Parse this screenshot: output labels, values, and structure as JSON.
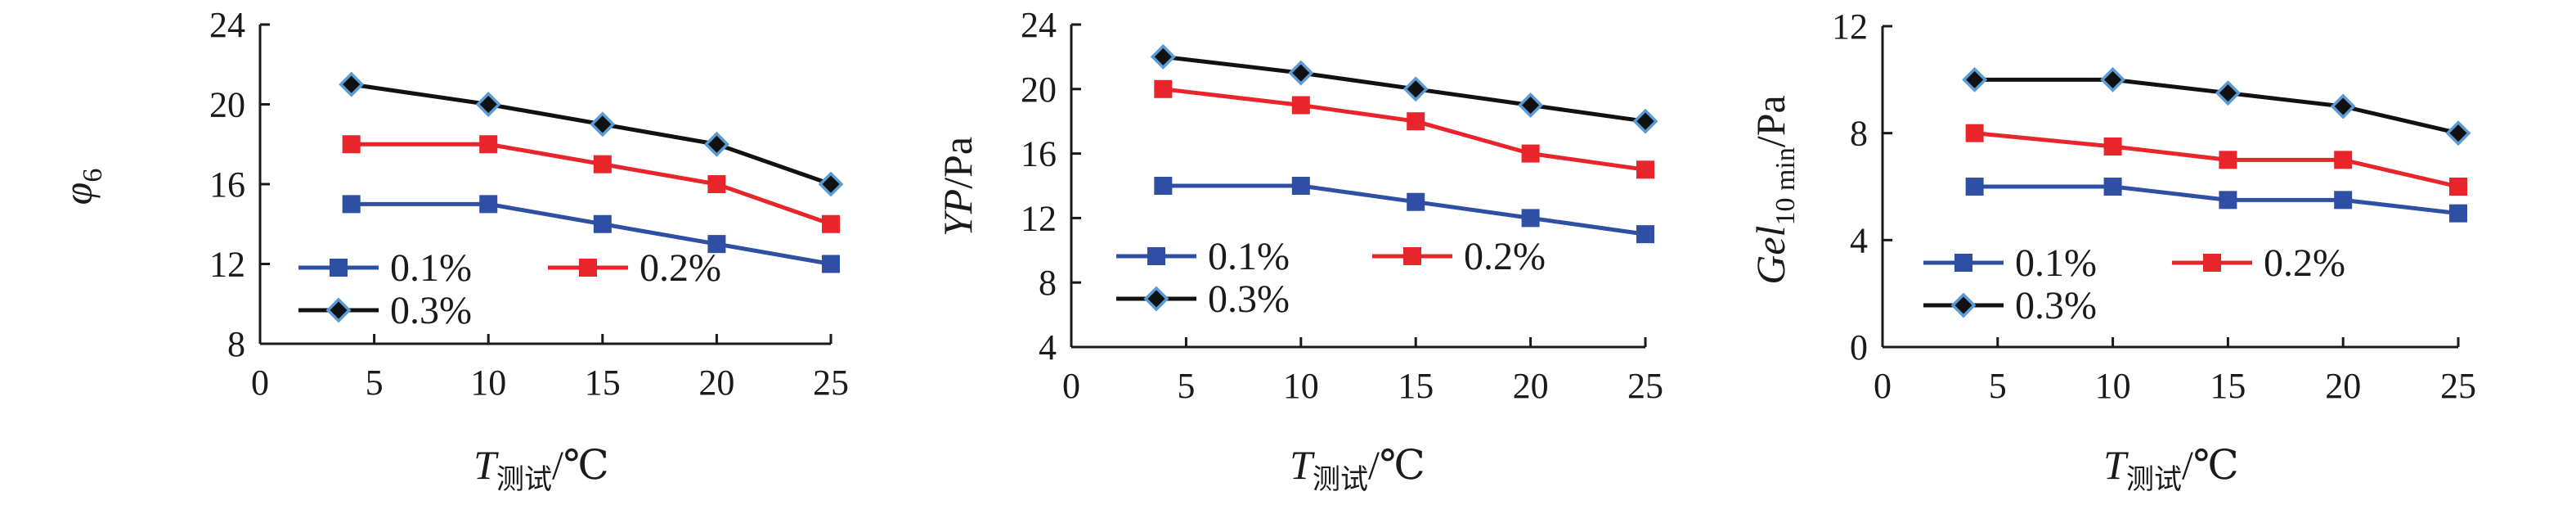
{
  "colors": {
    "series_0_1": "#2e4fa3",
    "series_0_2": "#e8252b",
    "series_0_3": "#111111",
    "marker_0_3_fill": "#111111",
    "marker_0_3_edge": "#5a9bd5",
    "axis": "#1a1a1a"
  },
  "markers": {
    "0.1%": "square",
    "0.2%": "square",
    "0.3%": "diamond"
  },
  "chart_data": [
    {
      "type": "line",
      "panel": "left",
      "ylabel": {
        "main": "φ",
        "sub": "6"
      },
      "xlabel": {
        "main": "T",
        "sub": "测试",
        "unit": "/℃"
      },
      "xlim": [
        0,
        25
      ],
      "ylim": [
        8,
        24
      ],
      "xticks": [
        "0",
        "5",
        "10",
        "15",
        "20",
        "25"
      ],
      "yticks": [
        "8",
        "12",
        "16",
        "20",
        "24"
      ],
      "x": [
        4,
        10,
        15,
        20,
        25
      ],
      "series": [
        {
          "name": "0.1%",
          "values": [
            15,
            15,
            14,
            13,
            12
          ]
        },
        {
          "name": "0.2%",
          "values": [
            18,
            18,
            17,
            16,
            14
          ]
        },
        {
          "name": "0.3%",
          "values": [
            21,
            20,
            19,
            18,
            16
          ]
        }
      ],
      "legend": "lower-left, inside plot"
    },
    {
      "type": "line",
      "panel": "middle",
      "ylabel": {
        "main": "YP",
        "sub": "",
        "unit": "/Pa"
      },
      "xlabel": {
        "main": "T",
        "sub": "测试",
        "unit": "/℃"
      },
      "xlim": [
        0,
        25
      ],
      "ylim": [
        4,
        24
      ],
      "xticks": [
        "0",
        "5",
        "10",
        "15",
        "20",
        "25"
      ],
      "yticks": [
        "4",
        "8",
        "12",
        "16",
        "20",
        "24"
      ],
      "x": [
        4,
        10,
        15,
        20,
        25
      ],
      "series": [
        {
          "name": "0.1%",
          "values": [
            14,
            14,
            13,
            12,
            11
          ]
        },
        {
          "name": "0.2%",
          "values": [
            20,
            19,
            18,
            16,
            15
          ]
        },
        {
          "name": "0.3%",
          "values": [
            22,
            21,
            20,
            19,
            18
          ]
        }
      ],
      "legend": "lower-left, inside plot"
    },
    {
      "type": "line",
      "panel": "right",
      "ylabel": {
        "main": "Gel",
        "sub": "10 min",
        "unit": "/Pa"
      },
      "xlabel": {
        "main": "T",
        "sub": "测试",
        "unit": "/℃"
      },
      "xlim": [
        0,
        25
      ],
      "ylim": [
        0,
        12
      ],
      "xticks": [
        "0",
        "5",
        "10",
        "15",
        "20",
        "25"
      ],
      "yticks": [
        "0",
        "4",
        "8",
        "12"
      ],
      "x": [
        4,
        10,
        15,
        20,
        25
      ],
      "series": [
        {
          "name": "0.1%",
          "values": [
            6,
            6,
            5.5,
            5.5,
            5
          ]
        },
        {
          "name": "0.2%",
          "values": [
            8,
            7.5,
            7,
            7,
            6
          ]
        },
        {
          "name": "0.3%",
          "values": [
            10,
            10,
            9.5,
            9,
            8
          ]
        }
      ],
      "legend": "lower-left, inside plot"
    }
  ]
}
